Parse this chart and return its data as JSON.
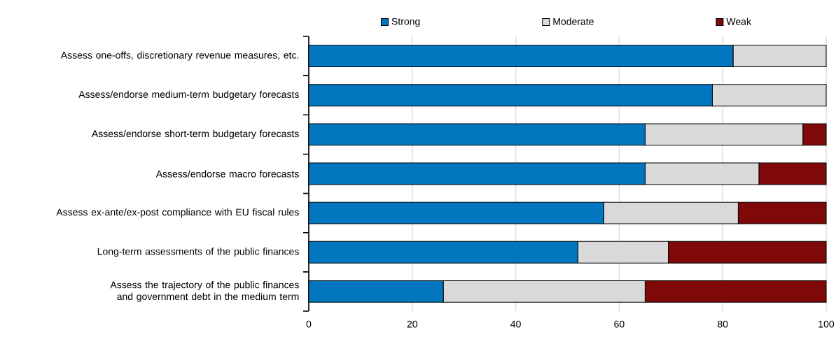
{
  "chart_data": {
    "type": "bar",
    "orientation": "horizontal",
    "stacked": true,
    "categories": [
      "Assess one-offs, discretionary revenue measures, etc.",
      "Assess/endorse medium-term budgetary forecasts",
      "Assess/endorse short-term budgetary forecasts",
      "Assess/endorse macro forecasts",
      "Assess ex-ante/ex-post compliance with EU fiscal rules",
      "Long-term assessments of the public finances",
      "Assess the trajectory of the public finances and government debt in the medium term"
    ],
    "series": [
      {
        "name": "Strong",
        "color": "#0277bf",
        "values": [
          82,
          78,
          65,
          65,
          57,
          52,
          26
        ]
      },
      {
        "name": "Moderate",
        "color": "#d9d9d9",
        "values": [
          18,
          22,
          30.5,
          22,
          26,
          17.5,
          39
        ]
      },
      {
        "name": "Weak",
        "color": "#7f0808",
        "values": [
          0,
          0,
          4.5,
          13,
          17,
          30.5,
          35
        ]
      }
    ],
    "xlim": [
      0,
      100
    ],
    "xticks": [
      0,
      20,
      40,
      60,
      80,
      100
    ],
    "grid": "x",
    "legend": "top"
  }
}
